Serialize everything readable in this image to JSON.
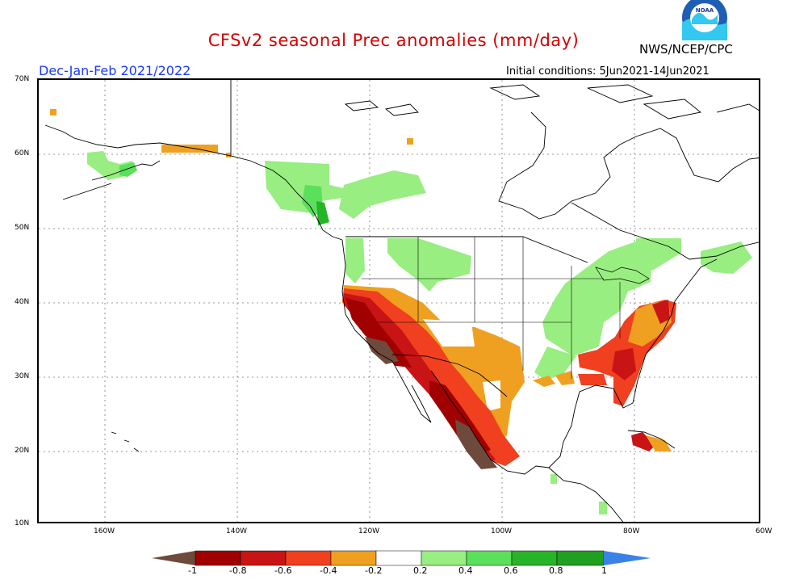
{
  "header": {
    "title": "CFSv2 seasonal Prec anomalies (mm/day)",
    "season": "Dec-Jan-Feb 2021/2022",
    "agency": "NWS/NCEP/CPC",
    "initial_conditions": "Initial conditions: 5Jun2021-14Jun2021",
    "logo_text": "NOAA"
  },
  "axes": {
    "lat_labels": [
      "70N",
      "60N",
      "50N",
      "40N",
      "30N",
      "20N",
      "10N"
    ],
    "lon_labels": [
      "160W",
      "140W",
      "120W",
      "100W",
      "80W",
      "60W"
    ]
  },
  "colorbar": {
    "labels": [
      "-1",
      "-0.8",
      "-0.6",
      "-0.4",
      "-0.2",
      "0.2",
      "0.4",
      "0.6",
      "0.8",
      "1"
    ],
    "colors": [
      "#6e4a3c",
      "#a00000",
      "#c81414",
      "#f04020",
      "#f0a020",
      "#ffffff",
      "#98ee80",
      "#5ae05a",
      "#28b428",
      "#20a020",
      "#3a82e6"
    ]
  },
  "colors": {
    "title": "#d40000",
    "season": "#1a3aff",
    "coast": "#000000",
    "grid": "#666666"
  }
}
